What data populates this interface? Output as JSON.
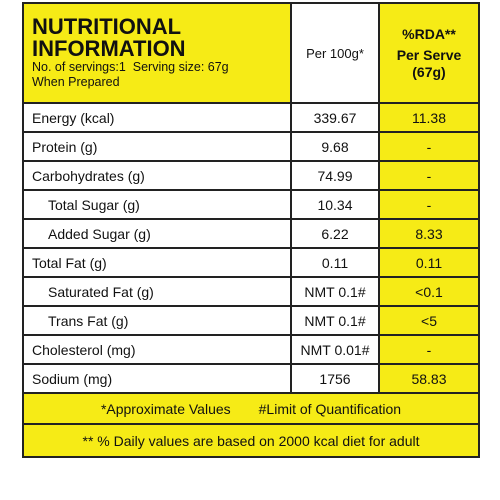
{
  "header": {
    "title_line1": "NUTRITIONAL",
    "title_line2": "INFORMATION",
    "servings": "No. of servings:1  Serving size: 67g",
    "prepared": "When Prepared",
    "per100": "Per 100g*",
    "rda": "%RDA**",
    "per_serve": "Per Serve",
    "serve_size": "(67g)"
  },
  "table": {
    "rows": [
      [
        "Energy (kcal)",
        "339.67",
        "11.38"
      ],
      [
        "Protein (g)",
        "9.68",
        "-"
      ],
      [
        "Carbohydrates (g)",
        "74.99",
        "-"
      ],
      [
        "Total Sugar (g)",
        "10.34",
        "-"
      ],
      [
        "Added Sugar (g)",
        "6.22",
        "8.33"
      ],
      [
        "Total Fat (g)",
        "0.11",
        "0.11"
      ],
      [
        "Saturated Fat (g)",
        "NMT 0.1#",
        "<0.1"
      ],
      [
        "Trans Fat (g)",
        "NMT 0.1#",
        "<5"
      ],
      [
        "Cholesterol (mg)",
        "NMT 0.01#",
        "-"
      ],
      [
        "Sodium (mg)",
        "1756",
        "58.83"
      ]
    ]
  },
  "footer": {
    "approx": "*Approximate Values",
    "limit": "#Limit of Quantification",
    "daily": "** % Daily values are based on 2000 kcal diet for adult"
  }
}
